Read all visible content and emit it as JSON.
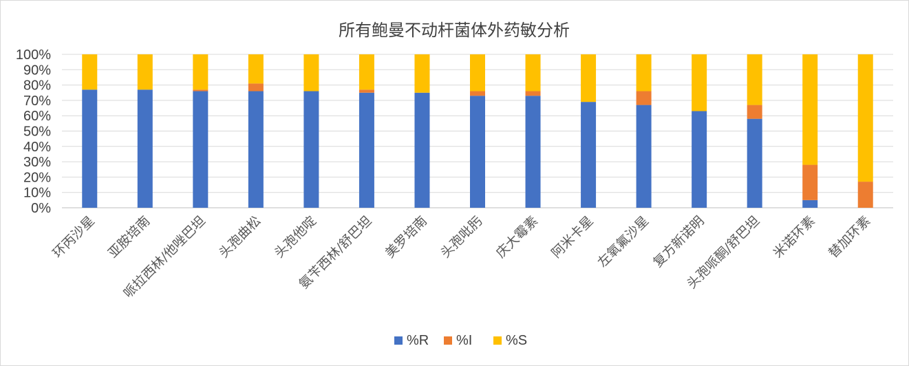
{
  "chart_data": {
    "type": "bar",
    "stacked": true,
    "title": "所有鲍曼不动杆菌体外药敏分析",
    "ylim": [
      0,
      100
    ],
    "yticks": [
      "0%",
      "10%",
      "20%",
      "30%",
      "40%",
      "50%",
      "60%",
      "70%",
      "80%",
      "90%",
      "100%"
    ],
    "grid": true,
    "legend_position": "bottom",
    "categories": [
      "环丙沙星",
      "亚胺培南",
      "哌拉西林/他唑巴坦",
      "头孢曲松",
      "头孢他啶",
      "氨苄西林/舒巴坦",
      "美罗培南",
      "头孢吡肟",
      "庆大霉素",
      "阿米卡星",
      "左氧氟沙星",
      "复方新诺明",
      "头孢哌酮/舒巴坦",
      "米诺环素",
      "替加环素"
    ],
    "series": [
      {
        "name": "%R",
        "color": "#4472c4",
        "values": [
          77,
          77,
          76,
          76,
          76,
          75,
          75,
          73,
          73,
          69,
          67,
          63,
          58,
          5,
          0
        ]
      },
      {
        "name": "%I",
        "color": "#ed7d31",
        "values": [
          0,
          0,
          1,
          5,
          0,
          2,
          0,
          3,
          3,
          0,
          9,
          0,
          9,
          23,
          17
        ]
      },
      {
        "name": "%S",
        "color": "#ffc000",
        "values": [
          23,
          23,
          23,
          19,
          24,
          23,
          25,
          24,
          24,
          31,
          24,
          37,
          33,
          72,
          83
        ]
      }
    ]
  }
}
